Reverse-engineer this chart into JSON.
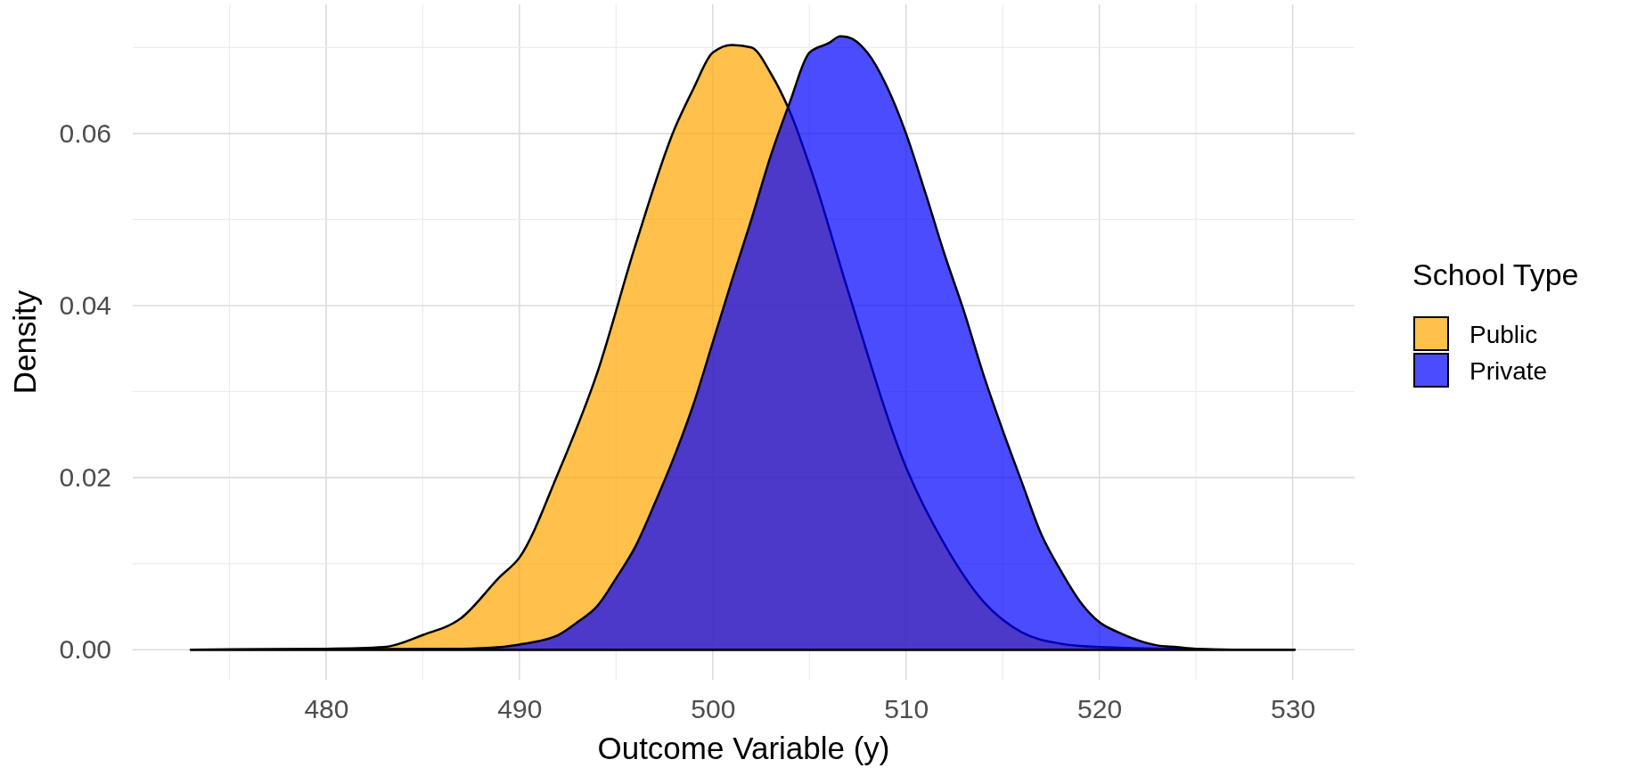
{
  "chart_data": {
    "type": "area",
    "xlabel": "Outcome Variable (y)",
    "ylabel": "Density",
    "legend_title": "School Type",
    "xlim": [
      470,
      533.2
    ],
    "ylim": [
      -0.0035,
      0.075
    ],
    "xticks": [
      480,
      490,
      500,
      510,
      520,
      530
    ],
    "yticks": [
      {
        "value": 0,
        "label": "0.00"
      },
      {
        "value": 0.02,
        "label": "0.02"
      },
      {
        "value": 0.04,
        "label": "0.04"
      },
      {
        "value": 0.06,
        "label": "0.06"
      }
    ],
    "grid": true,
    "legend": "right",
    "series": [
      {
        "name": "Public",
        "color": "#ffa500",
        "x": [
          473,
          480,
          483,
          485,
          487,
          489,
          490,
          492,
          494,
          496,
          498,
          499,
          500,
          501,
          502,
          503,
          504,
          505.2,
          507,
          510,
          512,
          514,
          516,
          518,
          520,
          524,
          527,
          530.1
        ],
        "values": [
          0,
          0.0001,
          0.0003,
          0.0017,
          0.0037,
          0.0085,
          0.0107,
          0.0205,
          0.032,
          0.047,
          0.0604,
          0.0652,
          0.0694,
          0.0703,
          0.07,
          0.067,
          0.0625,
          0.055,
          0.0417,
          0.0212,
          0.0122,
          0.0056,
          0.002,
          0.0007,
          0.0003,
          0.0001,
          0,
          0
        ]
      },
      {
        "name": "Private",
        "color": "#0000ff",
        "x": [
          473,
          487,
          489,
          490,
          491,
          492,
          493,
          494,
          495,
          496,
          497,
          498,
          499,
          500,
          501,
          502,
          503,
          504,
          505,
          506,
          506.6,
          507,
          508,
          509,
          510,
          511,
          512,
          513,
          514,
          515,
          516,
          517,
          518,
          519,
          520,
          521,
          522,
          523,
          524,
          525,
          527,
          530.1
        ],
        "values": [
          0,
          0.0001,
          0.0003,
          0.0006,
          0.001,
          0.0017,
          0.0032,
          0.005,
          0.0083,
          0.012,
          0.017,
          0.0224,
          0.0285,
          0.0357,
          0.043,
          0.05,
          0.0574,
          0.0637,
          0.0694,
          0.0705,
          0.0713,
          0.0712,
          0.0694,
          0.0655,
          0.06,
          0.0531,
          0.0459,
          0.0393,
          0.032,
          0.0255,
          0.0194,
          0.0134,
          0.0092,
          0.0056,
          0.0032,
          0.002,
          0.0011,
          0.0005,
          0.0003,
          0.0001,
          0,
          0
        ]
      }
    ]
  }
}
